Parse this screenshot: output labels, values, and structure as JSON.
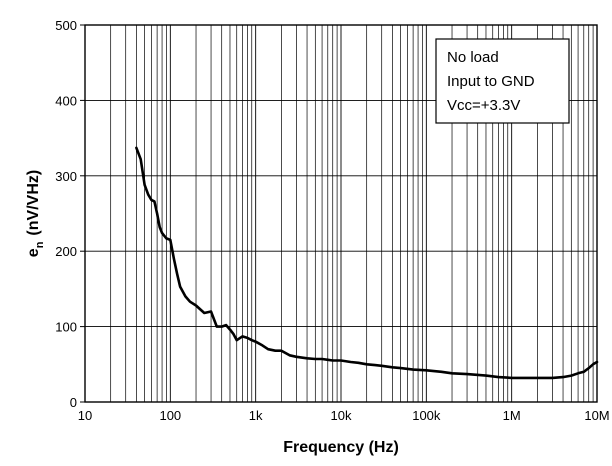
{
  "chart_data": {
    "type": "line",
    "title": "",
    "xlabel": "Frequency (Hz)",
    "ylabel": "e",
    "ylabel_sub": "n",
    "ylabel_unit": "(nV/VHz)",
    "xscale": "log",
    "xlim": [
      10,
      10000000
    ],
    "ylim": [
      0,
      500
    ],
    "grid": true,
    "x_ticks": [
      {
        "value": 10,
        "label": "10"
      },
      {
        "value": 100,
        "label": "100"
      },
      {
        "value": 1000,
        "label": "1k"
      },
      {
        "value": 10000,
        "label": "10k"
      },
      {
        "value": 100000,
        "label": "100k"
      },
      {
        "value": 1000000,
        "label": "1M"
      },
      {
        "value": 10000000,
        "label": "10M"
      }
    ],
    "y_ticks": [
      {
        "value": 0,
        "label": "0"
      },
      {
        "value": 100,
        "label": "100"
      },
      {
        "value": 200,
        "label": "200"
      },
      {
        "value": 300,
        "label": "300"
      },
      {
        "value": 400,
        "label": "400"
      },
      {
        "value": 500,
        "label": "500"
      }
    ],
    "annotations": [
      "No load",
      "Input to GND",
      "Vcc=+3.3V"
    ],
    "line_color": "#000000",
    "series": [
      {
        "x": [
          40,
          45,
          50,
          55,
          60,
          65,
          70,
          75,
          80,
          90,
          100,
          110,
          120,
          130,
          150,
          170,
          200,
          250,
          300,
          350,
          400,
          450,
          500,
          550,
          600,
          700,
          800,
          900,
          1000,
          1200,
          1400,
          1700,
          2000,
          2500,
          3000,
          4000,
          5000,
          6000,
          7000,
          8000,
          10000,
          13000,
          16000,
          20000,
          25000,
          30000,
          40000,
          50000,
          70000,
          100000,
          150000,
          200000,
          300000,
          500000,
          700000,
          1000000,
          1500000,
          2000000,
          3000000,
          4000000,
          5000000,
          6000000,
          7000000,
          8000000,
          9000000,
          10000000
        ],
        "y": [
          337,
          322,
          288,
          275,
          268,
          266,
          250,
          232,
          224,
          217,
          215,
          190,
          170,
          153,
          140,
          133,
          128,
          118,
          120,
          100,
          100,
          102,
          96,
          90,
          82,
          87,
          85,
          82,
          80,
          75,
          70,
          68,
          68,
          62,
          60,
          58,
          57,
          57,
          56,
          55,
          55,
          53,
          52,
          50,
          49,
          48,
          46,
          45,
          43,
          42,
          40,
          38,
          37,
          35,
          33,
          32,
          32,
          32,
          32,
          33,
          35,
          38,
          40,
          45,
          50,
          53
        ]
      }
    ]
  }
}
